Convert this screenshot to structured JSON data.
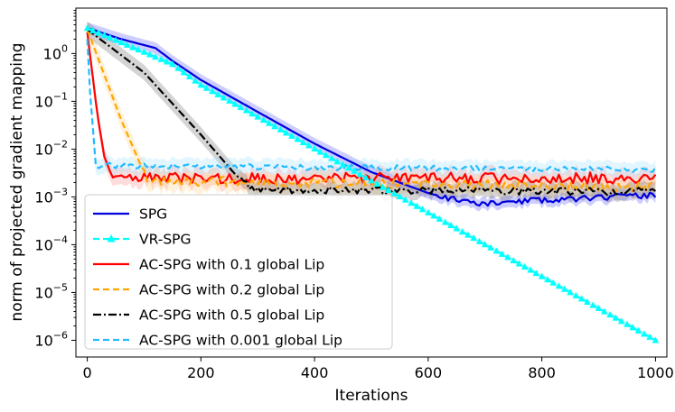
{
  "chart_data": {
    "type": "line",
    "xlabel": "Iterations",
    "ylabel": "norm of projected gradient mapping",
    "xlim": [
      -20,
      1020
    ],
    "ylim_log10": [
      -6.35,
      0.95
    ],
    "yscale": "log",
    "x_ticks": [
      0,
      200,
      400,
      600,
      800,
      1000
    ],
    "x_tick_labels": [
      "0",
      "200",
      "400",
      "600",
      "800",
      "1000"
    ],
    "y_ticks_log10": [
      0,
      -1,
      -2,
      -3,
      -4,
      -5,
      -6
    ],
    "y_tick_labels": [
      {
        "base": "10",
        "exp": "0"
      },
      {
        "base": "10",
        "exp": "−1"
      },
      {
        "base": "10",
        "exp": "−2"
      },
      {
        "base": "10",
        "exp": "−3"
      },
      {
        "base": "10",
        "exp": "−4"
      },
      {
        "base": "10",
        "exp": "−5"
      },
      {
        "base": "10",
        "exp": "−6"
      }
    ],
    "legend_position": "lower-left",
    "series": [
      {
        "name": "SPG",
        "color": "#0000dd",
        "dash": "solid",
        "marker": "none",
        "band": true,
        "band_color": "#4d4dff",
        "band_width_log10": 0.12,
        "noise_log10": 0.06,
        "seed": 11,
        "noise_after": 620,
        "knots": [
          [
            0,
            3.4
          ],
          [
            60,
            2.0
          ],
          [
            120,
            1.3
          ],
          [
            150,
            0.7
          ],
          [
            200,
            0.28
          ],
          [
            300,
            0.06
          ],
          [
            400,
            0.013
          ],
          [
            500,
            0.0033
          ],
          [
            600,
            0.0012
          ],
          [
            680,
            0.0007
          ],
          [
            800,
            0.00085
          ],
          [
            1000,
            0.0011
          ]
        ]
      },
      {
        "name": "VR-SPG",
        "color": "#00ffff",
        "dash": "dashed",
        "marker": "triangle",
        "band": true,
        "band_color": "#80ffff",
        "band_width_log10": 0.06,
        "noise_log10": 0.0,
        "seed": 5,
        "noise_after": 2000,
        "knots": [
          [
            0,
            3.4
          ],
          [
            150,
            0.6
          ],
          [
            200,
            0.22
          ],
          [
            1000,
            1e-06
          ]
        ]
      },
      {
        "name": "AC-SPG with 0.1 global Lip",
        "color": "#ff0000",
        "dash": "solid",
        "marker": "none",
        "band": true,
        "band_color": "#ff8080",
        "band_width_log10": 0.18,
        "noise_log10": 0.12,
        "seed": 3,
        "noise_after": 45,
        "knots": [
          [
            0,
            2.8
          ],
          [
            18,
            0.05
          ],
          [
            30,
            0.007
          ],
          [
            45,
            0.0024
          ],
          [
            1000,
            0.0025
          ]
        ]
      },
      {
        "name": "AC-SPG with 0.2 global Lip",
        "color": "#ffa500",
        "dash": "dashed",
        "marker": "none",
        "band": true,
        "band_color": "#ffd080",
        "band_width_log10": 0.2,
        "noise_log10": 0.1,
        "seed": 7,
        "noise_after": 100,
        "knots": [
          [
            0,
            3.2
          ],
          [
            60,
            0.04
          ],
          [
            90,
            0.006
          ],
          [
            105,
            0.0022
          ],
          [
            1000,
            0.0016
          ]
        ]
      },
      {
        "name": "AC-SPG with 0.5 global Lip",
        "color": "#000000",
        "dash": "dashdot",
        "marker": "none",
        "band": true,
        "band_color": "#666666",
        "band_width_log10": 0.16,
        "noise_log10": 0.08,
        "seed": 19,
        "noise_after": 270,
        "knots": [
          [
            0,
            3.2
          ],
          [
            100,
            0.4
          ],
          [
            200,
            0.02
          ],
          [
            260,
            0.003
          ],
          [
            290,
            0.0014
          ],
          [
            1000,
            0.0013
          ]
        ]
      },
      {
        "name": "AC-SPG with 0.001 global Lip",
        "color": "#22bbff",
        "dash": "dashed",
        "marker": "none",
        "band": true,
        "band_color": "#99ddff",
        "band_width_log10": 0.16,
        "noise_log10": 0.06,
        "seed": 23,
        "noise_after": 20,
        "knots": [
          [
            0,
            2.0
          ],
          [
            5,
            0.15
          ],
          [
            15,
            0.0045
          ],
          [
            1000,
            0.0037
          ]
        ]
      }
    ]
  }
}
